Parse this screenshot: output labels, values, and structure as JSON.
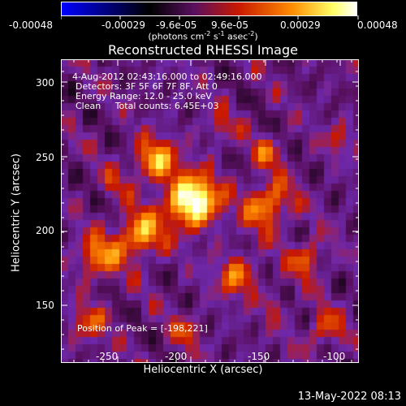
{
  "colorbar": {
    "tick_labels": [
      "-0.00048",
      "-0.00029",
      "-9.6e-05",
      "9.6e-05",
      "0.00029",
      "0.00048"
    ],
    "units_label": {
      "a": "(photons cm",
      "b": "-2",
      "c": " s",
      "d": "-1",
      "e": " asec",
      "f": "-2",
      "g": ")"
    },
    "colormap": [
      "#0000ff",
      "#000000",
      "#6a1a8a",
      "#cc1a00",
      "#ff9a00",
      "#ffff66",
      "#ffffff"
    ]
  },
  "plot": {
    "title": "Reconstructed RHESSI Image",
    "x_axis": {
      "label": "Heliocentric X (arcsec)",
      "ticks": [
        "-250",
        "-200",
        "-150",
        "-100"
      ],
      "range": [
        -288,
        -92
      ]
    },
    "y_axis": {
      "label": "Heliocentric Y (arcsec)",
      "ticks": [
        "150",
        "200",
        "250",
        "300"
      ],
      "range": [
        126,
        322
      ]
    },
    "info": {
      "time": "4-Aug-2012 02:43:16.000 to 02:49:16.000",
      "detectors": "Detectors: 3F 5F 6F 7F 8F, Att 0",
      "energy": "Energy Range: 12.0 - 25.0 keV",
      "clean": "Clean     Total counts: 6.45E+03"
    },
    "peak_label": "Position of Peak = [-198,221]"
  },
  "timestamp": "13-May-2022 08:13"
}
